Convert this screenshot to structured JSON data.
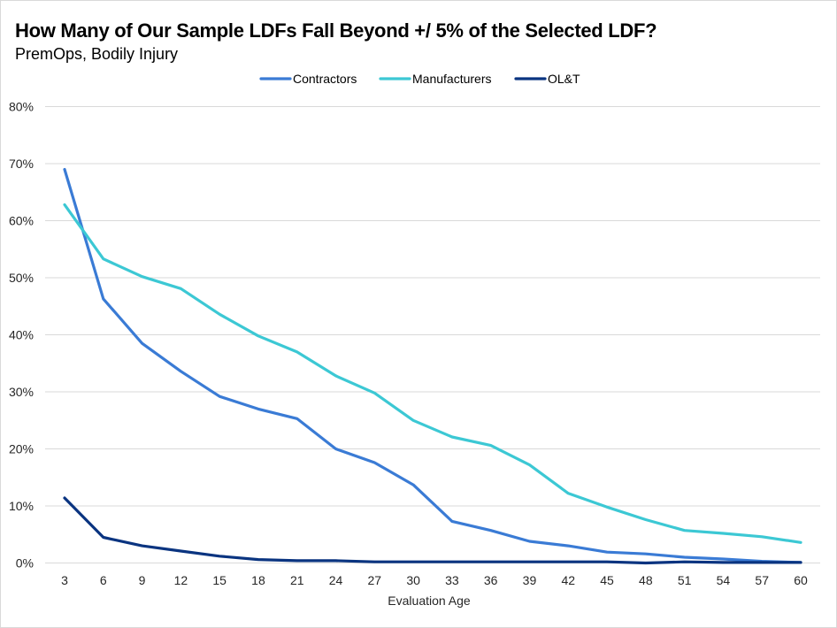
{
  "chart_data": {
    "type": "line",
    "title": "How Many of Our Sample LDFs Fall Beyond +/ 5% of the Selected LDF?",
    "subtitle": "PremOps, Bodily Injury",
    "xlabel": "Evaluation Age",
    "ylabel": "",
    "ylim": [
      0,
      0.8
    ],
    "y_ticks": [
      0,
      0.1,
      0.2,
      0.3,
      0.4,
      0.5,
      0.6,
      0.7,
      0.8
    ],
    "y_tick_labels": [
      "0%",
      "10%",
      "20%",
      "30%",
      "40%",
      "50%",
      "60%",
      "70%",
      "80%"
    ],
    "grid": true,
    "legend_position": "top-center",
    "categories": [
      "3",
      "6",
      "9",
      "12",
      "15",
      "18",
      "21",
      "24",
      "27",
      "30",
      "33",
      "36",
      "39",
      "42",
      "45",
      "48",
      "51",
      "54",
      "57",
      "60"
    ],
    "series": [
      {
        "name": "Contractors",
        "color": "#3A7BD5",
        "values": [
          0.69,
          0.463,
          0.385,
          0.336,
          0.292,
          0.27,
          0.253,
          0.2,
          0.176,
          0.137,
          0.073,
          0.057,
          0.038,
          0.03,
          0.019,
          0.016,
          0.01,
          0.007,
          0.003,
          0.001
        ]
      },
      {
        "name": "Manufacturers",
        "color": "#3CC8D4",
        "values": [
          0.628,
          0.533,
          0.502,
          0.481,
          0.436,
          0.398,
          0.37,
          0.328,
          0.298,
          0.25,
          0.221,
          0.206,
          0.172,
          0.122,
          0.098,
          0.076,
          0.057,
          0.052,
          0.046,
          0.036
        ]
      },
      {
        "name": "OL&T",
        "color": "#0A3480",
        "values": [
          0.114,
          0.045,
          0.03,
          0.021,
          0.012,
          0.006,
          0.004,
          0.004,
          0.002,
          0.002,
          0.002,
          0.002,
          0.002,
          0.002,
          0.002,
          0.0,
          0.002,
          0.001,
          0.001,
          0.001
        ]
      }
    ]
  }
}
